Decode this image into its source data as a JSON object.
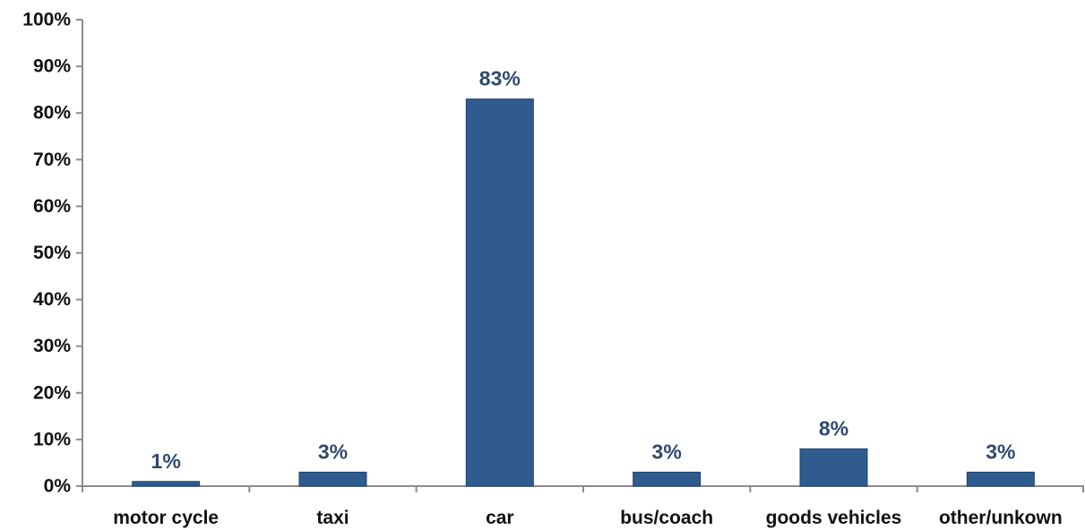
{
  "chart_data": {
    "type": "bar",
    "categories": [
      "motor cycle",
      "taxi",
      "car",
      "bus/coach",
      "goods vehicles",
      "other/unkown"
    ],
    "values": [
      1,
      3,
      83,
      3,
      8,
      3
    ],
    "data_labels": [
      "1%",
      "3%",
      "83%",
      "3%",
      "8%",
      "3%"
    ],
    "title": "",
    "xlabel": "",
    "ylabel": "",
    "ylim": [
      0,
      100
    ],
    "y_ticks": [
      0,
      10,
      20,
      30,
      40,
      50,
      60,
      70,
      80,
      90,
      100
    ],
    "y_tick_labels": [
      "0%",
      "10%",
      "20%",
      "30%",
      "40%",
      "50%",
      "60%",
      "70%",
      "80%",
      "90%",
      "100%"
    ],
    "grid": false,
    "legend": "none",
    "colors": {
      "bar_fill": "#2f5b8f",
      "bar_stroke": "#1f4470",
      "data_label": "#2e4a6e",
      "axis": "#8c8c8c"
    }
  }
}
